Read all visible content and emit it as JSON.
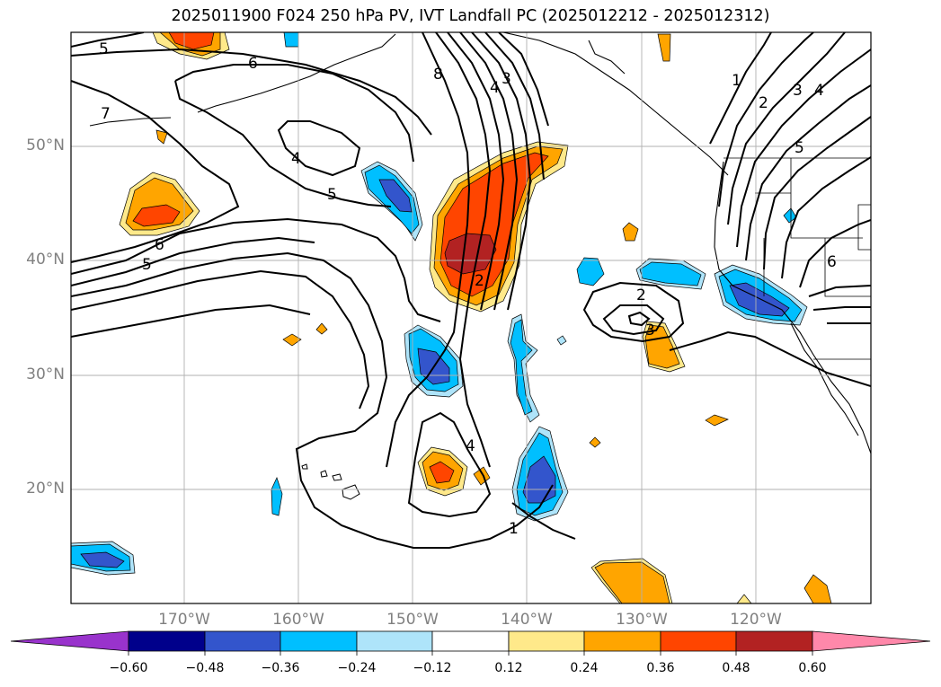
{
  "title": "2025011900 F024 250 hPa PV, IVT Landfall PC (2025012212 - 2025012312)",
  "lat_labels": [
    "50°N",
    "40°N",
    "30°N",
    "20°N"
  ],
  "lon_labels": [
    "170°W",
    "160°W",
    "150°W",
    "140°W",
    "130°W",
    "120°W"
  ],
  "colorbar": {
    "ticks": [
      "−0.60",
      "−0.48",
      "−0.36",
      "−0.24",
      "−0.12",
      "0.12",
      "0.24",
      "0.36",
      "0.48",
      "0.60"
    ],
    "colors": [
      "#9933cc",
      "#00008b",
      "#3355cc",
      "#00bfff",
      "#aee4fa",
      "#ffffff",
      "#ffe98a",
      "#ffa500",
      "#ff4500",
      "#b22222",
      "#ff88aa"
    ]
  },
  "contour_labels": [
    "5",
    "6",
    "7",
    "8",
    "4",
    "3",
    "4",
    "5",
    "6",
    "5",
    "2",
    "4",
    "1",
    "1",
    "2",
    "3",
    "4",
    "5",
    "6",
    "2",
    "3"
  ]
}
